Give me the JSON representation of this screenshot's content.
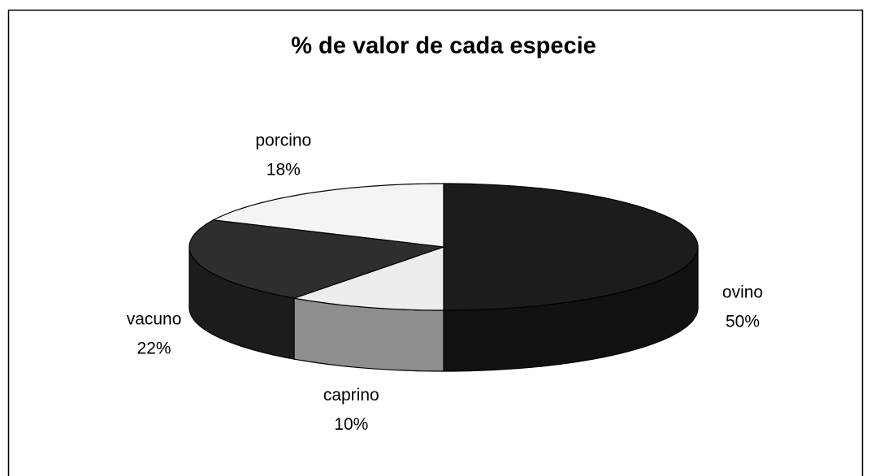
{
  "chart_data": {
    "type": "pie",
    "title": "% de valor de cada especie",
    "categories": [
      "ovino",
      "caprino",
      "vacuno",
      "porcino"
    ],
    "values": [
      50,
      10,
      22,
      18
    ],
    "value_labels": [
      "50%",
      "10%",
      "22%",
      "18%"
    ],
    "colors": [
      "#1c1c1c",
      "#ededed",
      "#2e2e2e",
      "#f4f4f4"
    ]
  }
}
